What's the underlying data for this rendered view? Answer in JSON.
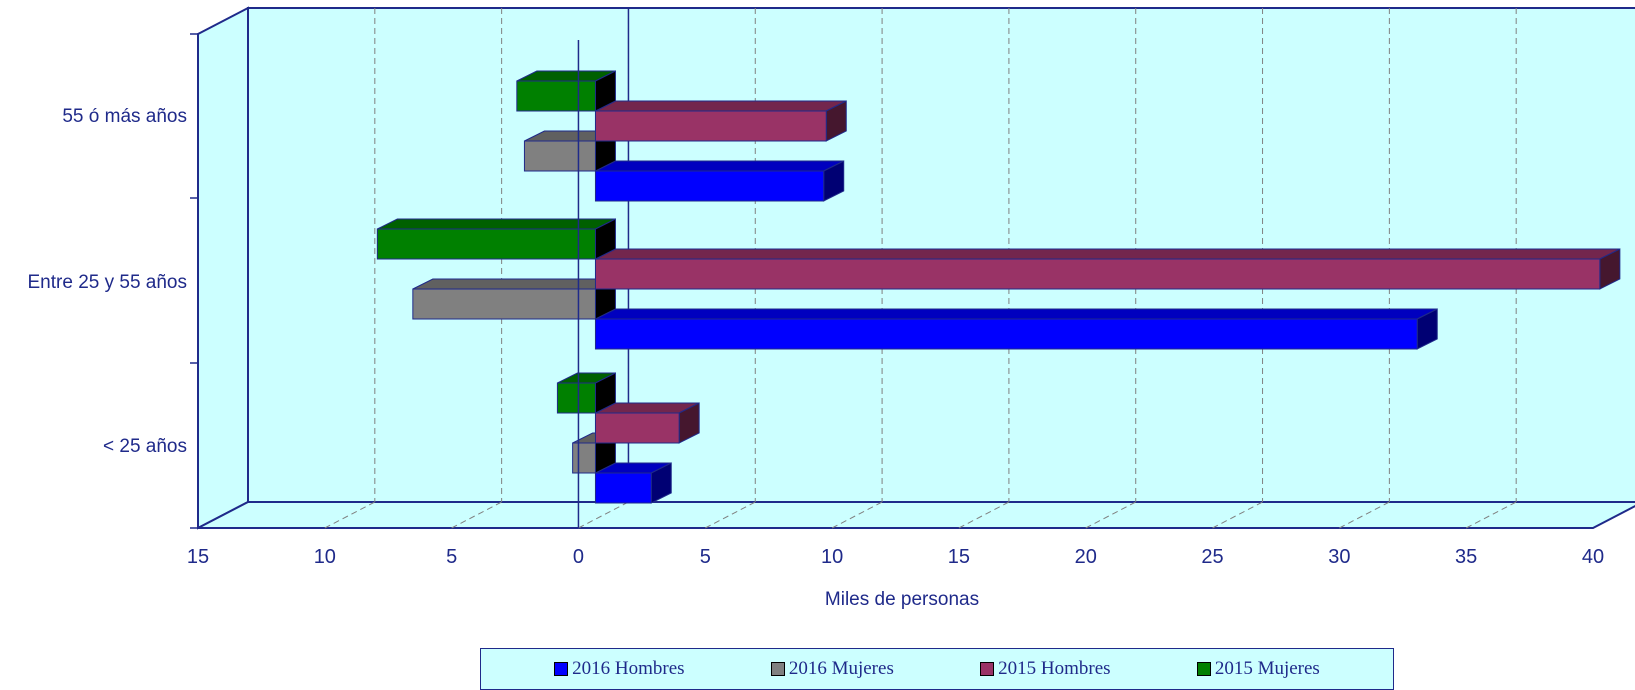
{
  "chart_data": {
    "type": "bar",
    "orientation": "horizontal",
    "xlabel": "Miles de personas",
    "x_ticks": [
      "15",
      "10",
      "5",
      "0",
      "5",
      "10",
      "15",
      "20",
      "25",
      "30",
      "35",
      "40"
    ],
    "xlim": [
      -15,
      40
    ],
    "categories": [
      "< 25 años",
      "Entre 25 y 55 años",
      "55 ó más años"
    ],
    "series": [
      {
        "name": "2016 Hombres",
        "color": "#0000ff",
        "values": [
          2.2,
          32.4,
          9.0
        ]
      },
      {
        "name": "2016 Mujeres",
        "color": "#808080",
        "values": [
          -0.9,
          -7.2,
          -2.8
        ]
      },
      {
        "name": "2015 Hombres",
        "color": "#993366",
        "values": [
          3.3,
          39.6,
          9.1
        ]
      },
      {
        "name": "2015 Mujeres",
        "color": "#008000",
        "values": [
          -1.5,
          -8.6,
          -3.1
        ]
      }
    ],
    "legend_position": "bottom",
    "grid": true
  }
}
